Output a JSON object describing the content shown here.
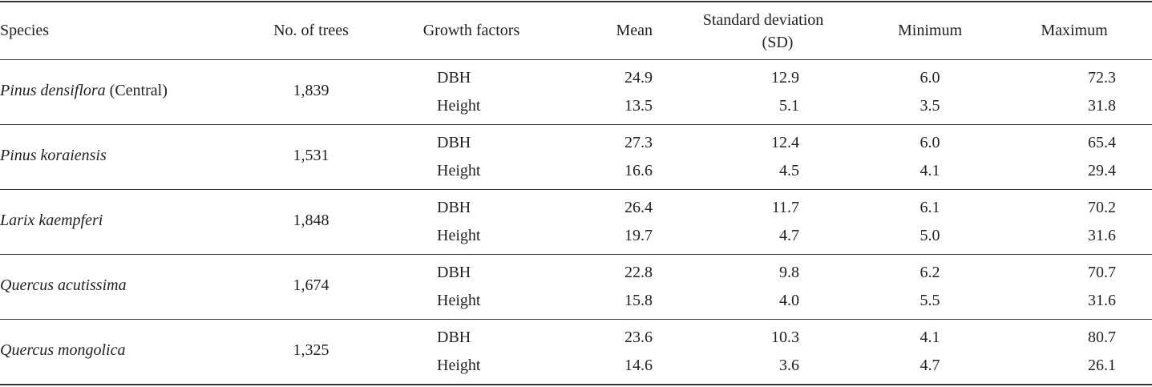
{
  "table": {
    "header": {
      "species": "Species",
      "trees": "No. of trees",
      "factor": "Growth factors",
      "mean": "Mean",
      "sd": [
        "Standard deviation",
        "(SD)"
      ],
      "min": "Minimum",
      "max": "Maximum"
    },
    "groups": [
      {
        "species": "Pinus densiflora",
        "qualifier": "(Central)",
        "trees": "1,839",
        "rows": [
          {
            "factor": "DBH",
            "mean": "24.9",
            "sd": "12.9",
            "min": "6.0",
            "max": "72.3"
          },
          {
            "factor": "Height",
            "mean": "13.5",
            "sd": "5.1",
            "min": "3.5",
            "max": "31.8"
          }
        ]
      },
      {
        "species": "Pinus koraiensis",
        "trees": "1,531",
        "rows": [
          {
            "factor": "DBH",
            "mean": "27.3",
            "sd": "12.4",
            "min": "6.0",
            "max": "65.4"
          },
          {
            "factor": "Height",
            "mean": "16.6",
            "sd": "4.5",
            "min": "4.1",
            "max": "29.4"
          }
        ]
      },
      {
        "species": "Larix kaempferi",
        "trees": "1,848",
        "rows": [
          {
            "factor": "DBH",
            "mean": "26.4",
            "sd": "11.7",
            "min": "6.1",
            "max": "70.2"
          },
          {
            "factor": "Height",
            "mean": "19.7",
            "sd": "4.7",
            "min": "5.0",
            "max": "31.6"
          }
        ]
      },
      {
        "species": "Quercus acutissima",
        "trees": "1,674",
        "rows": [
          {
            "factor": "DBH",
            "mean": "22.8",
            "sd": "9.8",
            "min": "6.2",
            "max": "70.7"
          },
          {
            "factor": "Height",
            "mean": "15.8",
            "sd": "4.0",
            "min": "5.5",
            "max": "31.6"
          }
        ]
      },
      {
        "species": "Quercus mongolica",
        "trees": "1,325",
        "rows": [
          {
            "factor": "DBH",
            "mean": "23.6",
            "sd": "10.3",
            "min": "4.1",
            "max": "80.7"
          },
          {
            "factor": "Height",
            "mean": "14.6",
            "sd": "3.6",
            "min": "4.7",
            "max": "26.1"
          }
        ]
      }
    ]
  }
}
